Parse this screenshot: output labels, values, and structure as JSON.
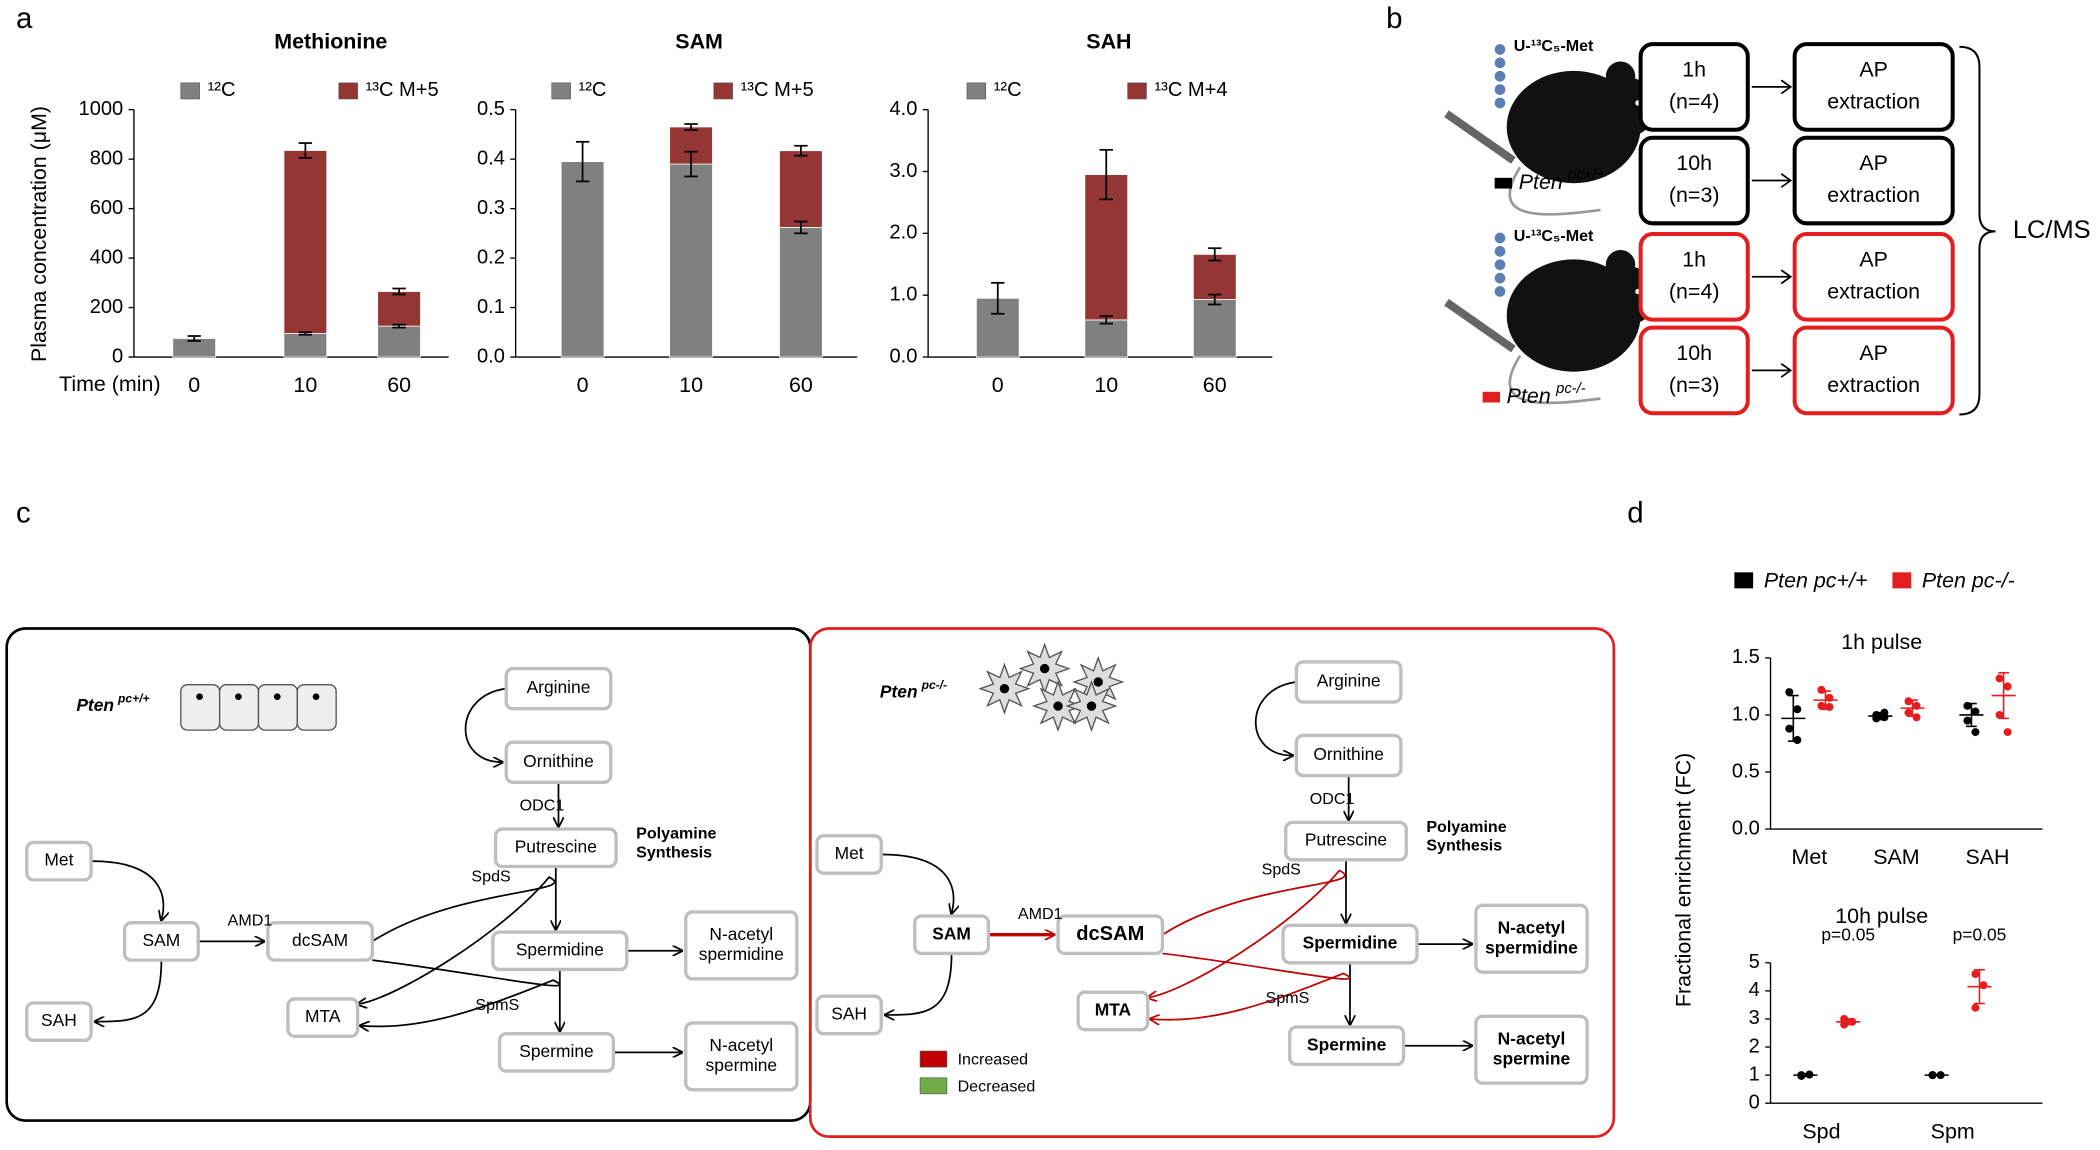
{
  "panel_labels": [
    "a",
    "b",
    "c",
    "d"
  ],
  "chart_data": [
    {
      "type": "bar",
      "title": "Methionine",
      "y_label": "Plasma concentration (μM)",
      "x_label": "Time (min)",
      "categories": [
        "0",
        "10",
        "60"
      ],
      "series": [
        {
          "name": "¹²C",
          "color": "#808080",
          "values": [
            75,
            95,
            125
          ],
          "errors": [
            10,
            5,
            6
          ]
        },
        {
          "name": "¹³C M+5",
          "color": "#943634",
          "values": [
            null,
            740,
            140
          ],
          "errors": [
            null,
            30,
            12
          ]
        }
      ],
      "ylim": [
        0,
        1000
      ],
      "yticks": [
        0,
        200,
        400,
        600,
        800,
        1000
      ]
    },
    {
      "type": "bar",
      "title": "SAM",
      "categories": [
        "0",
        "10",
        "60"
      ],
      "series": [
        {
          "name": "¹²C",
          "color": "#808080",
          "values": [
            0.395,
            0.39,
            0.262
          ],
          "errors": [
            0.04,
            0.025,
            0.012
          ]
        },
        {
          "name": "¹³C M+5",
          "color": "#943634",
          "values": [
            null,
            0.075,
            0.155
          ],
          "errors": [
            null,
            0.006,
            0.01
          ]
        }
      ],
      "ylim": [
        0,
        0.5
      ],
      "yticks": [
        {
          "value": 0,
          "label": "0.0"
        },
        0.1,
        0.2,
        0.3,
        0.4,
        0.5
      ]
    },
    {
      "type": "bar",
      "title": "SAH",
      "categories": [
        "0",
        "10",
        "60"
      ],
      "series": [
        {
          "name": "¹²C",
          "color": "#808080",
          "values": [
            0.95,
            0.6,
            0.93
          ],
          "errors": [
            0.25,
            0.06,
            0.08
          ]
        },
        {
          "name": "¹³C M+4",
          "color": "#943634",
          "values": [
            null,
            2.35,
            0.73
          ],
          "errors": [
            null,
            0.4,
            0.1
          ]
        }
      ],
      "ylim": [
        0,
        4
      ],
      "yticks": [
        {
          "value": 0,
          "label": "0.0"
        },
        {
          "value": 1,
          "label": "1.0"
        },
        {
          "value": 2,
          "label": "2.0"
        },
        {
          "value": 3,
          "label": "3.0"
        },
        {
          "value": 4,
          "label": "4.0"
        }
      ]
    },
    {
      "type": "dot",
      "title": "1h pulse",
      "y_label": "Fractional enrichment (FC)",
      "categories": [
        "Met",
        "SAM",
        "SAH"
      ],
      "series": [
        {
          "name": "Pten pc+/+",
          "color": "#000000",
          "points": [
            [
              1.2,
              1.05,
              0.88,
              0.78
            ],
            [
              1.0,
              0.98,
              0.97,
              1.02
            ],
            [
              1.08,
              1.03,
              0.95,
              0.85
            ]
          ],
          "values": [
            0.97,
            0.99,
            1.0
          ],
          "errors": [
            0.2,
            0.03,
            0.1
          ]
        },
        {
          "name": "Pten pc-/-",
          "color": "#e41e1e",
          "points": [
            [
              1.22,
              1.15,
              1.08,
              1.07
            ],
            [
              1.12,
              1.08,
              1.02,
              0.98
            ],
            [
              1.32,
              1.25,
              1.0,
              0.85
            ]
          ],
          "values": [
            1.13,
            1.06,
            1.17
          ],
          "errors": [
            0.08,
            0.07,
            0.2
          ]
        }
      ],
      "ylim": [
        0,
        1.5
      ],
      "yticks": [
        {
          "value": 0,
          "label": "0.0"
        },
        0.5,
        {
          "value": 1,
          "label": "1.0"
        },
        1.5
      ]
    },
    {
      "type": "dot",
      "title": "10h pulse",
      "categories": [
        "Spd",
        "Spm"
      ],
      "series": [
        {
          "color": "#000000",
          "points": [
            [
              1.0,
              1.02,
              0.97
            ],
            [
              1.0,
              1.0,
              1.0
            ]
          ],
          "values": [
            1.0,
            1.0
          ],
          "errors": [
            0.04,
            0.02
          ]
        },
        {
          "color": "#e41e1e",
          "points": [
            [
              3.0,
              2.9,
              2.8
            ],
            [
              4.6,
              4.2,
              3.4
            ]
          ],
          "values": [
            2.9,
            4.15
          ],
          "errors": [
            0.1,
            0.6
          ]
        }
      ],
      "annotations": [
        {
          "text": "p=0.05",
          "x": "Spd"
        },
        {
          "text": "p=0.05",
          "x": "Spm"
        }
      ],
      "ylim": [
        0,
        5
      ],
      "yticks": [
        0,
        1,
        2,
        3,
        4,
        5
      ]
    }
  ],
  "panel_b": {
    "tracer": "U-¹³C₅-Met",
    "step": [
      "AP",
      "extraction"
    ],
    "readout": "LC/MS",
    "groups": [
      {
        "genotype": "Pten",
        "genotype_sup": "pc+/+",
        "color": "#000000",
        "timepoints": [
          {
            "time": "1h",
            "n": "(n=4)"
          },
          {
            "time": "10h",
            "n": "(n=3)"
          }
        ]
      },
      {
        "genotype": "Pten",
        "genotype_sup": "pc-/-",
        "color": "#e41e1e",
        "timepoints": [
          {
            "time": "1h",
            "n": "(n=4)"
          },
          {
            "time": "10h",
            "n": "(n=3)"
          }
        ]
      }
    ]
  },
  "panel_c": {
    "panels": [
      {
        "genotype": "Pten",
        "genotype_sup": "pc+/+",
        "border": "#000000",
        "pathway_label": [
          "Polyamine",
          "Synthesis"
        ],
        "enzymes": [
          "ODC1",
          "AMD1",
          "SpdS",
          "SpmS"
        ],
        "nodes": [
          {
            "label": [
              "Arginine"
            ],
            "color": "#000000",
            "bold": false
          },
          {
            "label": [
              "Ornithine"
            ],
            "color": "#000000",
            "bold": false
          },
          {
            "label": [
              "Putrescine"
            ],
            "color": "#000000",
            "bold": false
          },
          {
            "label": [
              "Spermidine"
            ],
            "color": "#000000",
            "bold": false
          },
          {
            "label": [
              "Spermine"
            ],
            "color": "#000000",
            "bold": false
          },
          {
            "label": [
              "N-acetyl",
              "spermidine"
            ],
            "color": "#000000",
            "bold": false
          },
          {
            "label": [
              "N-acetyl",
              "spermine"
            ],
            "color": "#000000",
            "bold": false
          },
          {
            "label": [
              "Met"
            ],
            "color": "#000000",
            "bold": false
          },
          {
            "label": [
              "SAM"
            ],
            "color": "#000000",
            "bold": false
          },
          {
            "label": [
              "SAH"
            ],
            "color": "#000000",
            "bold": false
          },
          {
            "label": [
              "dcSAM"
            ],
            "color": "#000000",
            "bold": false
          },
          {
            "label": [
              "MTA"
            ],
            "color": "#000000",
            "bold": false
          }
        ]
      },
      {
        "genotype": "Pten",
        "genotype_sup": "pc-/-",
        "border": "#e41e1e",
        "pathway_label": [
          "Polyamine",
          "Synthesis"
        ],
        "enzymes": [
          "ODC1",
          "AMD1",
          "SpdS",
          "SpmS"
        ],
        "nodes": [
          {
            "label": [
              "Arginine"
            ],
            "color": "#3a7d2a",
            "bold": false
          },
          {
            "label": [
              "Ornithine"
            ],
            "color": "#c00000",
            "bold": false
          },
          {
            "label": [
              "Putrescine"
            ],
            "color": "#000000",
            "bold": false
          },
          {
            "label": [
              "Spermidine"
            ],
            "color": "#000000",
            "bold": true
          },
          {
            "label": [
              "Spermine"
            ],
            "color": "#000000",
            "bold": true
          },
          {
            "label": [
              "N-acetyl",
              "spermidine"
            ],
            "color": "#c00000",
            "bold": true
          },
          {
            "label": [
              "N-acetyl",
              "spermine"
            ],
            "color": "#c00000",
            "bold": true
          },
          {
            "label": [
              "Met"
            ],
            "color": "#000000",
            "bold": false
          },
          {
            "label": [
              "SAM"
            ],
            "color": "#c00000",
            "bold": true
          },
          {
            "label": [
              "SAH"
            ],
            "color": "#3a7d2a",
            "bold": false
          },
          {
            "label": [
              "dcSAM"
            ],
            "color": "#c00000",
            "bold": true
          },
          {
            "label": [
              "MTA"
            ],
            "color": "#c00000",
            "bold": true
          }
        ],
        "legend": [
          {
            "label": "Increased",
            "color": "#c00000"
          },
          {
            "label": "Decreased",
            "color": "#70ad47"
          }
        ]
      }
    ]
  }
}
